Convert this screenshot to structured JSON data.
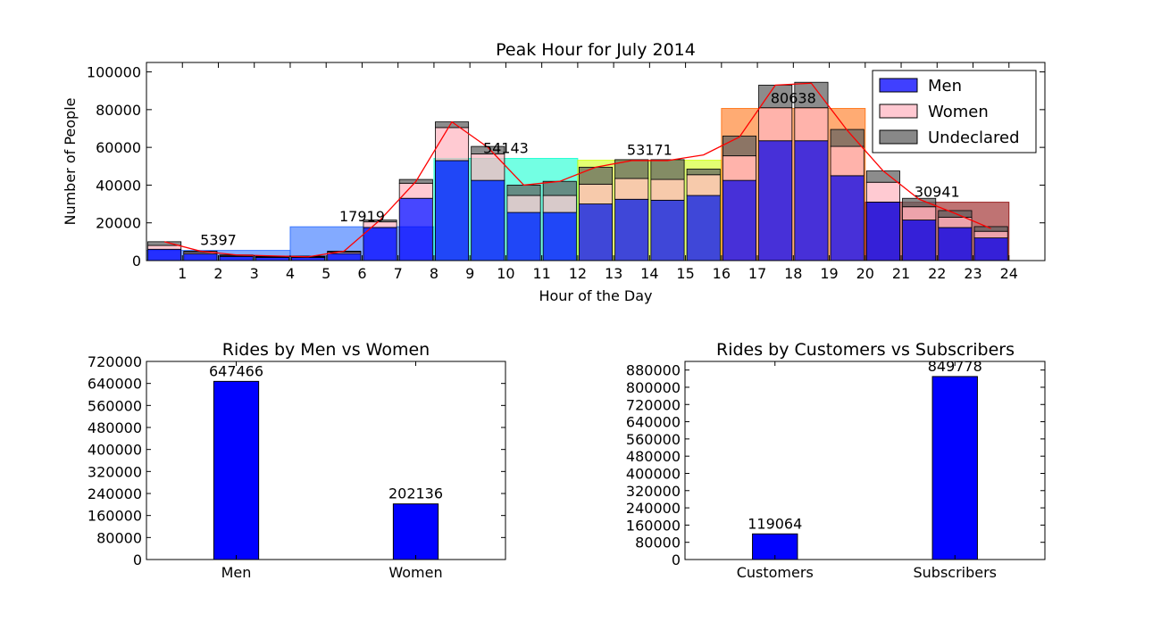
{
  "colors": {
    "men": "#0000ff",
    "women": "#ffb6c1",
    "undeclared": "#606060",
    "trend_line": "#ff0000",
    "bar": "#0000ff",
    "zone_colors": [
      "#1e64ff",
      "#00ffcc",
      "#ccff00",
      "#ff6600",
      "#8b0000"
    ]
  },
  "chart_data": [
    {
      "type": "bar",
      "stacked": true,
      "title": "Peak Hour for July 2014",
      "xlabel": "Hour of the Day",
      "ylabel": "Number of People",
      "ylim": [
        0,
        105000
      ],
      "yticks": [
        0,
        20000,
        40000,
        60000,
        80000,
        100000
      ],
      "xticks": [
        1,
        2,
        3,
        4,
        5,
        6,
        7,
        8,
        9,
        10,
        11,
        12,
        13,
        14,
        15,
        16,
        17,
        18,
        19,
        20,
        21,
        22,
        23,
        24
      ],
      "xlim": [
        0,
        25
      ],
      "legend_position": "top-right",
      "x": [
        0,
        1,
        2,
        3,
        4,
        5,
        6,
        7,
        8,
        9,
        10,
        11,
        12,
        13,
        14,
        15,
        16,
        17,
        18,
        19,
        20,
        21,
        22,
        23
      ],
      "series": [
        {
          "name": "Men",
          "color_key": "men",
          "values": [
            6000,
            3500,
            2200,
            1700,
            1700,
            3700,
            17500,
            33000,
            53000,
            42500,
            25500,
            25500,
            30000,
            32500,
            32000,
            34500,
            42500,
            63500,
            63500,
            45000,
            31000,
            21500,
            17500,
            12000
          ]
        },
        {
          "name": "Women",
          "color_key": "women",
          "values": [
            2000,
            800,
            500,
            400,
            400,
            800,
            3000,
            8000,
            17500,
            14000,
            9000,
            9000,
            10500,
            11000,
            11000,
            11000,
            13000,
            17500,
            17500,
            15500,
            10500,
            7000,
            5500,
            3500
          ]
        },
        {
          "name": "Undeclared",
          "color_key": "undeclared",
          "values": [
            2000,
            700,
            300,
            300,
            300,
            500,
            1000,
            2000,
            3000,
            4000,
            5500,
            7500,
            9000,
            10000,
            10500,
            3000,
            10500,
            12000,
            13500,
            9000,
            6000,
            4500,
            3500,
            2500
          ]
        }
      ],
      "trend_line": {
        "x": [
          0,
          1,
          2,
          3,
          4,
          5,
          6,
          7,
          8,
          9,
          10,
          11,
          12,
          13,
          14,
          15,
          16,
          17,
          18,
          19,
          20,
          21,
          22,
          23
        ],
        "values": [
          10000,
          5000,
          3000,
          2500,
          2000,
          5000,
          21500,
          42000,
          73500,
          60000,
          40000,
          42000,
          49500,
          53000,
          53000,
          56000,
          65500,
          93000,
          94000,
          69000,
          47500,
          32500,
          25000,
          17000
        ]
      },
      "zones": [
        {
          "start": 0,
          "end": 4,
          "value": 5397,
          "label": "5397",
          "label_x": 2,
          "color_index": 0
        },
        {
          "start": 4,
          "end": 8,
          "value": 17919,
          "label": "17919",
          "label_x": 6,
          "color_index": 0
        },
        {
          "start": 8,
          "end": 12,
          "value": 54143,
          "label": "54143",
          "label_x": 10,
          "color_index": 1
        },
        {
          "start": 12,
          "end": 16,
          "value": 53171,
          "label": "53171",
          "label_x": 14,
          "color_index": 2
        },
        {
          "start": 16,
          "end": 20,
          "value": 80638,
          "label": "80638",
          "label_x": 18,
          "color_index": 3
        },
        {
          "start": 20,
          "end": 24,
          "value": 30941,
          "label": "30941",
          "label_x": 22,
          "color_index": 4
        }
      ]
    },
    {
      "type": "bar",
      "title": "Rides by Men vs Women",
      "categories": [
        "Men",
        "Women"
      ],
      "values": [
        647466,
        202136
      ],
      "data_labels": [
        "647466",
        "202136"
      ],
      "ylim": [
        0,
        720000
      ],
      "yticks": [
        0,
        80000,
        160000,
        240000,
        320000,
        400000,
        480000,
        560000,
        640000,
        720000
      ]
    },
    {
      "type": "bar",
      "title": "Rides by Customers vs Subscribers",
      "categories": [
        "Customers",
        "Subscribers"
      ],
      "values": [
        119064,
        849778
      ],
      "data_labels": [
        "119064",
        "849778"
      ],
      "ylim": [
        0,
        920000
      ],
      "yticks": [
        0,
        80000,
        160000,
        240000,
        320000,
        400000,
        480000,
        560000,
        640000,
        720000,
        800000,
        880000
      ]
    }
  ]
}
